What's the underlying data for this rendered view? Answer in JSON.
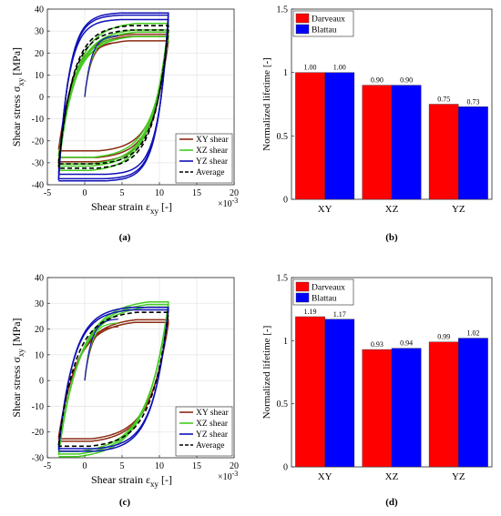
{
  "chart_data": [
    {
      "id": "a",
      "caption": "(a)",
      "type": "line",
      "xlabel": "Shear strain ε",
      "xlabel_sub": "xy",
      "xlabel_unit": "[-]",
      "ylabel": "Shear stress σ",
      "ylabel_sub": "xy",
      "ylabel_unit": "[MPa]",
      "x_multiplier": "×10",
      "x_multiplier_exp": "-3",
      "xlim": [
        -5,
        20
      ],
      "ylim": [
        -40,
        40
      ],
      "xticks": [
        "-5",
        "0",
        "5",
        "10",
        "15",
        "20"
      ],
      "yticks": [
        "-40",
        "-30",
        "-20",
        "-10",
        "0",
        "10",
        "20",
        "30",
        "40"
      ],
      "grid": true,
      "legend_position": "bottom-right",
      "series": [
        {
          "name": "XY shear",
          "color": "#8B2A12",
          "loops": [
            {
              "tmax": 27,
              "tmin": -27,
              "tau0": 2.0,
              "sat": 0.55
            },
            {
              "tmax": 25,
              "tmin": -24,
              "tau0": 2.0,
              "sat": 0.55
            },
            {
              "tmax": 28,
              "tmin": -29,
              "tau0": 2.0,
              "sat": 0.55
            }
          ]
        },
        {
          "name": "XZ shear",
          "color": "#44CC22",
          "loops": [
            {
              "tmax": 33,
              "tmin": -33,
              "tau0": 2.2,
              "sat": 0.5
            },
            {
              "tmax": 30,
              "tmin": -30,
              "tau0": 2.2,
              "sat": 0.5
            },
            {
              "tmax": 27,
              "tmin": -27,
              "tau0": 2.2,
              "sat": 0.5
            },
            {
              "tmax": 29,
              "tmin": -31,
              "tau0": 2.2,
              "sat": 0.5
            }
          ]
        },
        {
          "name": "YZ shear",
          "color": "#1010B8",
          "loops": [
            {
              "tmax": 38,
              "tmin": -38,
              "tau0": 1.4,
              "sat": 0.25
            },
            {
              "tmax": 37,
              "tmin": -37,
              "tau0": 1.4,
              "sat": 0.25
            },
            {
              "tmax": 35,
              "tmin": -35,
              "tau0": 1.4,
              "sat": 0.25
            }
          ]
        },
        {
          "name": "Average",
          "color": "#000000",
          "dashed": true,
          "loops": [
            {
              "tmax": 32,
              "tmin": -32,
              "tau0": 1.9,
              "sat": 0.45
            },
            {
              "tmax": 30,
              "tmin": -30,
              "tau0": 1.9,
              "sat": 0.45
            }
          ]
        }
      ],
      "loop_strain_range": [
        -3.5,
        11.2
      ],
      "initial_curve": {
        "tmax": 25,
        "x_start": 0
      }
    },
    {
      "id": "b",
      "caption": "(b)",
      "type": "bar",
      "ylabel": "Normalized lifetime [-]",
      "ylim": [
        0,
        1.5
      ],
      "yticks": [
        "0",
        "0.5",
        "1",
        "1.5"
      ],
      "categories": [
        "XY",
        "XZ",
        "YZ"
      ],
      "series": [
        {
          "name": "Darveaux",
          "color": "#FF0000",
          "values": [
            1.0,
            0.9,
            0.75
          ],
          "labels": [
            "1.00",
            "0.90",
            "0.75"
          ]
        },
        {
          "name": "Blattau",
          "color": "#0000FF",
          "values": [
            1.0,
            0.9,
            0.73
          ],
          "labels": [
            "1.00",
            "0.90",
            "0.73"
          ]
        }
      ],
      "legend_position": "top-left",
      "grid": false
    },
    {
      "id": "c",
      "caption": "(c)",
      "type": "line",
      "xlabel": "Shear strain ε",
      "xlabel_sub": "xy",
      "xlabel_unit": "[-]",
      "ylabel": "Shear stress σ",
      "ylabel_sub": "xy",
      "ylabel_unit": "[MPa]",
      "x_multiplier": "×10",
      "x_multiplier_exp": "-3",
      "xlim": [
        -5,
        20
      ],
      "ylim": [
        -30,
        40
      ],
      "xticks": [
        "-5",
        "0",
        "5",
        "10",
        "15",
        "20"
      ],
      "yticks": [
        "-30",
        "-20",
        "-10",
        "0",
        "10",
        "20",
        "30",
        "40"
      ],
      "grid": true,
      "legend_position": "bottom-right",
      "series": [
        {
          "name": "XY shear",
          "color": "#8B2A12",
          "loops": [
            {
              "tmax": 22,
              "tmin": -22,
              "tau0": 2.4,
              "sat": 0.6
            },
            {
              "tmax": 23,
              "tmin": -23,
              "tau0": 2.4,
              "sat": 0.6
            }
          ]
        },
        {
          "name": "XZ shear",
          "color": "#44CC22",
          "loops": [
            {
              "tmax": 30,
              "tmin": -29,
              "tau0": 2.8,
              "sat": 0.55
            },
            {
              "tmax": 29,
              "tmin": -28,
              "tau0": 2.8,
              "sat": 0.55
            },
            {
              "tmax": 28,
              "tmin": -27,
              "tau0": 2.8,
              "sat": 0.55
            }
          ]
        },
        {
          "name": "YZ shear",
          "color": "#1010B8",
          "loops": [
            {
              "tmax": 28,
              "tmin": -27,
              "tau0": 2.0,
              "sat": 0.45
            },
            {
              "tmax": 27,
              "tmin": -26,
              "tau0": 2.0,
              "sat": 0.45
            }
          ]
        },
        {
          "name": "Average",
          "color": "#000000",
          "dashed": true,
          "loops": [
            {
              "tmax": 26,
              "tmin": -25,
              "tau0": 2.3,
              "sat": 0.5
            }
          ]
        }
      ],
      "loop_strain_range": [
        -3.5,
        11.2
      ],
      "initial_curve": {
        "tmax": 21,
        "x_start": 0
      }
    },
    {
      "id": "d",
      "caption": "(d)",
      "type": "bar",
      "ylabel": "Normalized lifetime [-]",
      "ylim": [
        0,
        1.5
      ],
      "yticks": [
        "0",
        "0.5",
        "1",
        "1.5"
      ],
      "categories": [
        "XY",
        "XZ",
        "YZ"
      ],
      "series": [
        {
          "name": "Darveaux",
          "color": "#FF0000",
          "values": [
            1.19,
            0.93,
            0.99
          ],
          "labels": [
            "1.19",
            "0.93",
            "0.99"
          ]
        },
        {
          "name": "Blattau",
          "color": "#0000FF",
          "values": [
            1.17,
            0.94,
            1.02
          ],
          "labels": [
            "1.17",
            "0.94",
            "1.02"
          ]
        }
      ],
      "legend_position": "top-left",
      "grid": false
    }
  ]
}
